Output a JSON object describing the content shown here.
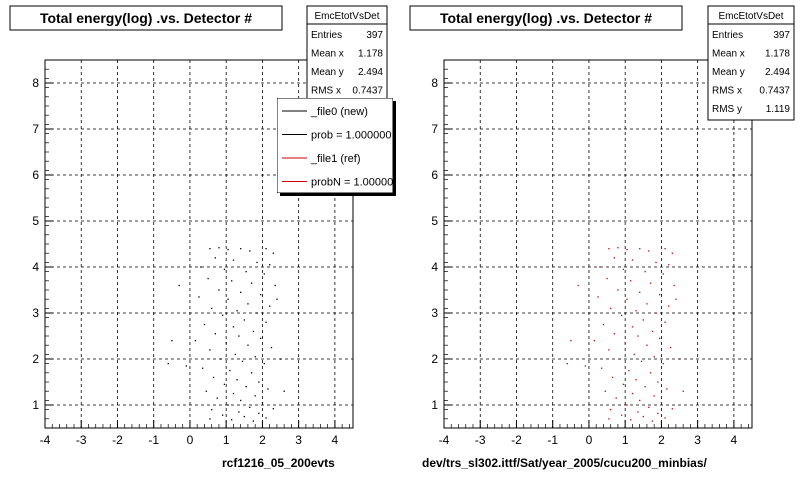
{
  "chart_data": [
    {
      "type": "scatter",
      "title": "Total energy(log) .vs. Detector #",
      "xlim": [
        -4,
        4.5
      ],
      "ylim": [
        0.5,
        8.5
      ],
      "xticks": [
        "-4",
        "-3",
        "-2",
        "-1",
        "0",
        "1",
        "2",
        "3",
        "4"
      ],
      "yticks": [
        "1",
        "2",
        "3",
        "4",
        "5",
        "6",
        "7",
        "8"
      ],
      "grid": true,
      "caption": "rcf1216_05_200evts",
      "stats": {
        "name": "EmcEtotVsDet",
        "rows": [
          {
            "label": "Entries",
            "value": "397"
          },
          {
            "label": "Mean x",
            "value": "1.178"
          },
          {
            "label": "Mean y",
            "value": "2.494"
          },
          {
            "label": "RMS x",
            "value": "0.7437"
          }
        ]
      },
      "legend": {
        "placement": "top-right",
        "entries": [
          {
            "label": "_file0 (new)",
            "color": "#000000"
          },
          {
            "label": "prob = 1.000000",
            "color": "#000000"
          },
          {
            "label": "_file1 (ref)",
            "color": "#cc0000"
          },
          {
            "label": "probN = 1.000000",
            "color": "#cc0000"
          }
        ]
      },
      "series": [
        {
          "color": "#000000",
          "points": [
            [
              0.55,
              4.4
            ],
            [
              0.8,
              4.42
            ],
            [
              1.05,
              4.38
            ],
            [
              1.4,
              4.4
            ],
            [
              1.65,
              4.35
            ],
            [
              2.1,
              4.4
            ],
            [
              2.3,
              4.3
            ],
            [
              0.7,
              4.2
            ],
            [
              1.2,
              4.15
            ],
            [
              1.85,
              4.1
            ],
            [
              2.2,
              4.05
            ],
            [
              0.3,
              4.0
            ],
            [
              0.95,
              3.95
            ],
            [
              1.55,
              3.9
            ],
            [
              2.05,
              3.85
            ],
            [
              0.5,
              3.75
            ],
            [
              1.15,
              3.7
            ],
            [
              1.7,
              3.65
            ],
            [
              2.35,
              3.6
            ],
            [
              0.8,
              3.5
            ],
            [
              1.4,
              3.45
            ],
            [
              1.95,
              3.4
            ],
            [
              0.25,
              3.35
            ],
            [
              1.05,
              3.3
            ],
            [
              1.6,
              3.2
            ],
            [
              2.2,
              3.15
            ],
            [
              0.6,
              3.1
            ],
            [
              1.3,
              3.05
            ],
            [
              1.85,
              3.0
            ],
            [
              0.9,
              2.95
            ],
            [
              1.5,
              2.85
            ],
            [
              2.1,
              2.8
            ],
            [
              0.4,
              2.75
            ],
            [
              1.2,
              2.7
            ],
            [
              1.75,
              2.6
            ],
            [
              0.7,
              2.55
            ],
            [
              1.35,
              2.5
            ],
            [
              1.95,
              2.45
            ],
            [
              0.15,
              2.4
            ],
            [
              1.0,
              2.35
            ],
            [
              1.6,
              2.3
            ],
            [
              2.25,
              2.25
            ],
            [
              0.55,
              2.2
            ],
            [
              1.25,
              2.1
            ],
            [
              1.8,
              2.05
            ],
            [
              0.85,
              2.0
            ],
            [
              1.45,
              1.95
            ],
            [
              2.05,
              1.9
            ],
            [
              -0.1,
              1.85
            ],
            [
              0.35,
              1.8
            ],
            [
              1.1,
              1.75
            ],
            [
              1.7,
              1.7
            ],
            [
              0.65,
              1.6
            ],
            [
              1.3,
              1.55
            ],
            [
              1.9,
              1.5
            ],
            [
              0.95,
              1.45
            ],
            [
              1.55,
              1.4
            ],
            [
              2.15,
              1.35
            ],
            [
              0.45,
              1.3
            ],
            [
              1.2,
              1.25
            ],
            [
              1.8,
              1.2
            ],
            [
              0.75,
              1.15
            ],
            [
              1.4,
              1.1
            ],
            [
              2.0,
              1.05
            ],
            [
              1.05,
              1.0
            ],
            [
              1.65,
              0.95
            ],
            [
              2.3,
              0.92
            ],
            [
              0.6,
              0.9
            ],
            [
              1.35,
              0.85
            ],
            [
              1.9,
              0.82
            ],
            [
              0.9,
              0.78
            ],
            [
              1.5,
              0.75
            ],
            [
              2.1,
              0.72
            ],
            [
              1.15,
              0.68
            ],
            [
              1.75,
              0.65
            ],
            [
              0.55,
              0.7
            ],
            [
              -0.5,
              2.4
            ],
            [
              -0.3,
              3.6
            ],
            [
              -0.6,
              1.9
            ],
            [
              2.5,
              2.0
            ],
            [
              2.6,
              1.3
            ],
            [
              2.4,
              3.3
            ]
          ]
        }
      ]
    },
    {
      "type": "scatter",
      "title": "Total energy(log) .vs. Detector #",
      "xlim": [
        -4,
        4.5
      ],
      "ylim": [
        0.5,
        8.5
      ],
      "xticks": [
        "-4",
        "-3",
        "-2",
        "-1",
        "0",
        "1",
        "2",
        "3",
        "4"
      ],
      "yticks": [
        "1",
        "2",
        "3",
        "4",
        "5",
        "6",
        "7",
        "8"
      ],
      "grid": true,
      "caption": "dev/trs_sl302.ittf/Sat/year_2005/cucu200_minbias/",
      "stats": {
        "name": "EmcEtotVsDet",
        "rows": [
          {
            "label": "Entries",
            "value": "397"
          },
          {
            "label": "Mean x",
            "value": "1.178"
          },
          {
            "label": "Mean y",
            "value": "2.494"
          },
          {
            "label": "RMS x",
            "value": "0.7437"
          },
          {
            "label": "RMS y",
            "value": "1.119"
          }
        ]
      },
      "series": [
        {
          "color": "#cc0000",
          "points": [
            [
              0.55,
              4.4
            ],
            [
              0.8,
              4.42
            ],
            [
              1.05,
              4.38
            ],
            [
              1.4,
              4.4
            ],
            [
              1.65,
              4.35
            ],
            [
              2.1,
              4.4
            ],
            [
              2.3,
              4.3
            ],
            [
              0.7,
              4.2
            ],
            [
              1.2,
              4.15
            ],
            [
              1.85,
              4.1
            ],
            [
              2.2,
              4.05
            ],
            [
              0.3,
              4.0
            ],
            [
              0.95,
              3.95
            ],
            [
              1.55,
              3.9
            ],
            [
              2.05,
              3.85
            ],
            [
              0.5,
              3.75
            ],
            [
              1.15,
              3.7
            ],
            [
              1.7,
              3.65
            ],
            [
              2.35,
              3.6
            ],
            [
              0.8,
              3.5
            ],
            [
              1.4,
              3.45
            ],
            [
              1.95,
              3.4
            ],
            [
              0.25,
              3.35
            ],
            [
              1.05,
              3.3
            ],
            [
              1.6,
              3.2
            ],
            [
              2.2,
              3.15
            ],
            [
              0.6,
              3.1
            ],
            [
              1.3,
              3.05
            ],
            [
              1.85,
              3.0
            ],
            [
              0.9,
              2.95
            ],
            [
              1.5,
              2.85
            ],
            [
              2.1,
              2.8
            ],
            [
              0.4,
              2.75
            ],
            [
              1.2,
              2.7
            ],
            [
              1.75,
              2.6
            ],
            [
              0.7,
              2.55
            ],
            [
              1.35,
              2.5
            ],
            [
              1.95,
              2.45
            ],
            [
              0.15,
              2.4
            ],
            [
              1.0,
              2.35
            ],
            [
              1.6,
              2.3
            ],
            [
              2.25,
              2.25
            ],
            [
              0.55,
              2.2
            ],
            [
              1.25,
              2.1
            ],
            [
              1.8,
              2.05
            ],
            [
              0.85,
              2.0
            ],
            [
              1.45,
              1.95
            ],
            [
              2.05,
              1.9
            ],
            [
              -0.1,
              1.85
            ],
            [
              0.35,
              1.8
            ],
            [
              1.1,
              1.75
            ],
            [
              1.7,
              1.7
            ],
            [
              0.65,
              1.6
            ],
            [
              1.3,
              1.55
            ],
            [
              1.9,
              1.5
            ],
            [
              0.95,
              1.45
            ],
            [
              1.55,
              1.4
            ],
            [
              2.15,
              1.35
            ],
            [
              0.45,
              1.3
            ],
            [
              1.2,
              1.25
            ],
            [
              1.8,
              1.2
            ],
            [
              0.75,
              1.15
            ],
            [
              1.4,
              1.1
            ],
            [
              2.0,
              1.05
            ],
            [
              1.05,
              1.0
            ],
            [
              1.65,
              0.95
            ],
            [
              2.3,
              0.92
            ],
            [
              0.6,
              0.9
            ],
            [
              1.35,
              0.85
            ],
            [
              1.9,
              0.82
            ],
            [
              0.9,
              0.78
            ],
            [
              1.5,
              0.75
            ],
            [
              2.1,
              0.72
            ],
            [
              1.15,
              0.68
            ],
            [
              1.75,
              0.65
            ],
            [
              0.55,
              0.7
            ],
            [
              -0.5,
              2.4
            ],
            [
              -0.3,
              3.6
            ],
            [
              -0.6,
              1.9
            ],
            [
              2.5,
              2.0
            ],
            [
              2.6,
              1.3
            ],
            [
              2.4,
              3.3
            ]
          ]
        }
      ]
    }
  ]
}
